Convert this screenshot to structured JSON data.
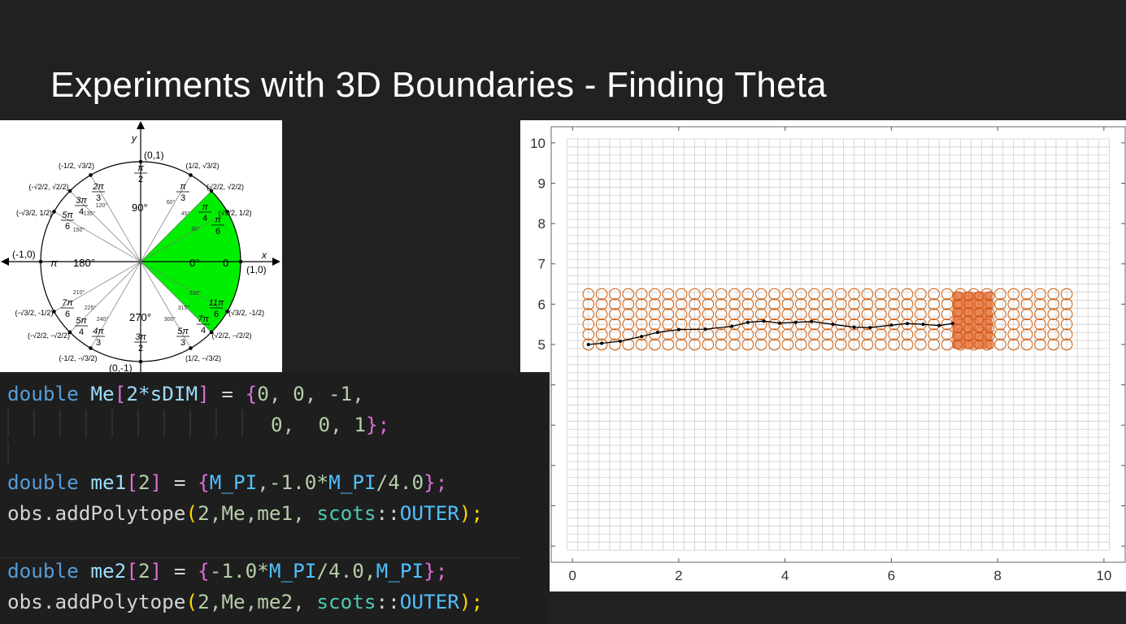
{
  "slide": {
    "title": "Experiments with 3D Boundaries - Finding Theta"
  },
  "unit_circle": {
    "axis_x": "x",
    "axis_y": "y",
    "point_top": "(0,1)",
    "point_right": "(1,0)",
    "point_left": "(-1,0)",
    "point_bottom": "(0,-1)",
    "center_right_deg": "0°",
    "center_right_rad": "0",
    "center_left_deg": "180°",
    "center_left_rad": "π",
    "top_deg": "90°",
    "bottom_deg": "270°",
    "highlight_color": "#00ee00",
    "angle_labels": [
      {
        "rad_num": "π",
        "rad_den": "2"
      },
      {
        "rad_num": "π",
        "rad_den": "3"
      },
      {
        "rad_num": "π",
        "rad_den": "4"
      },
      {
        "rad_num": "π",
        "rad_den": "6"
      },
      {
        "rad_num": "2π",
        "rad_den": "3"
      },
      {
        "rad_num": "3π",
        "rad_den": "4"
      },
      {
        "rad_num": "5π",
        "rad_den": "6"
      },
      {
        "rad_num": "7π",
        "rad_den": "6"
      },
      {
        "rad_num": "5π",
        "rad_den": "4"
      },
      {
        "rad_num": "4π",
        "rad_den": "3"
      },
      {
        "rad_num": "3π",
        "rad_den": "2"
      },
      {
        "rad_num": "5π",
        "rad_den": "3"
      },
      {
        "rad_num": "7π",
        "rad_den": "4"
      },
      {
        "rad_num": "11π",
        "rad_den": "6"
      }
    ],
    "degree_labels": [
      "30°",
      "45°",
      "60°",
      "120°",
      "135°",
      "150°",
      "210°",
      "225°",
      "240°",
      "300°",
      "315°",
      "330°"
    ],
    "coord_labels": [
      "(1/2, √3/2)",
      "(√2/2, √2/2)",
      "(√3/2, 1/2)",
      "(-1/2, √3/2)",
      "(-√2/2, √2/2)",
      "(-√3/2, 1/2)",
      "(-√3/2, -1/2)",
      "(-√2/2, -√2/2)",
      "(-1/2, -√3/2)",
      "(1/2, -√3/2)",
      "(√2/2, -√2/2)",
      "(√3/2, -1/2)"
    ]
  },
  "code": {
    "lines": [
      {
        "type": "double",
        "name": "Me",
        "idx_open": "[",
        "idx": "2*sDIM",
        "idx_close": "]",
        "eq": " = ",
        "open": "{",
        "vals": "0, 0, -1,"
      },
      {
        "indent": "",
        "vals2": "0,  0, 1",
        "close": "};"
      },
      {
        "type": "double",
        "name": "me1",
        "idx_open": "[",
        "idx": "2",
        "idx_close": "]",
        "eq": " = ",
        "open": "{",
        "v1": "M_PI",
        "v2": ",-1.0*",
        "v3": "M_PI",
        "v4": "/4.0",
        "close": "};"
      },
      {
        "obj": "obs",
        "method": ".addPolytope",
        "open": "(",
        "args": "2,Me,me1, ",
        "ns": "scots",
        "sep": "::",
        "mac": "OUTER",
        "close": ");"
      },
      {
        "type": "double",
        "name": "me2",
        "idx_open": "[",
        "idx": "2",
        "idx_close": "]",
        "eq": " = ",
        "open": "{",
        "v1": "-1.0*",
        "v2": "M_PI",
        "v3": "/4.0,",
        "v4": "M_PI",
        "close": "};"
      },
      {
        "obj": "obs",
        "method": ".addPolytope",
        "open": "(",
        "args": "2,Me,me2, ",
        "ns": "scots",
        "sep": "::",
        "mac": "OUTER",
        "close": ");"
      }
    ]
  },
  "chart_data": {
    "type": "scatter",
    "title": "",
    "xlabel": "",
    "ylabel": "",
    "xlim": [
      -0.4,
      10.4
    ],
    "ylim": [
      -0.4,
      10.4
    ],
    "xticks": [
      "0",
      "2",
      "4",
      "6",
      "8",
      "10"
    ],
    "yticks": [
      "5",
      "6",
      "7",
      "8",
      "9",
      "10"
    ],
    "grid": true,
    "obstacle_region": {
      "x_range": [
        0.3,
        9.5
      ],
      "y_range": [
        5.0,
        6.25
      ],
      "color": "#d2691e"
    },
    "target_region": {
      "x_range": [
        7.15,
        7.9
      ],
      "y_range": [
        4.9,
        6.3
      ],
      "color": "#e8743b"
    },
    "trajectory": {
      "color": "#000000",
      "points": [
        [
          0.3,
          5.0
        ],
        [
          0.55,
          5.03
        ],
        [
          0.9,
          5.08
        ],
        [
          1.3,
          5.2
        ],
        [
          1.6,
          5.3
        ],
        [
          2.0,
          5.37
        ],
        [
          2.5,
          5.38
        ],
        [
          3.0,
          5.45
        ],
        [
          3.3,
          5.55
        ],
        [
          3.6,
          5.58
        ],
        [
          3.9,
          5.53
        ],
        [
          4.2,
          5.55
        ],
        [
          4.5,
          5.57
        ],
        [
          4.9,
          5.5
        ],
        [
          5.3,
          5.43
        ],
        [
          5.6,
          5.42
        ],
        [
          6.0,
          5.48
        ],
        [
          6.3,
          5.52
        ],
        [
          6.6,
          5.5
        ],
        [
          6.9,
          5.47
        ],
        [
          7.15,
          5.52
        ]
      ]
    }
  }
}
